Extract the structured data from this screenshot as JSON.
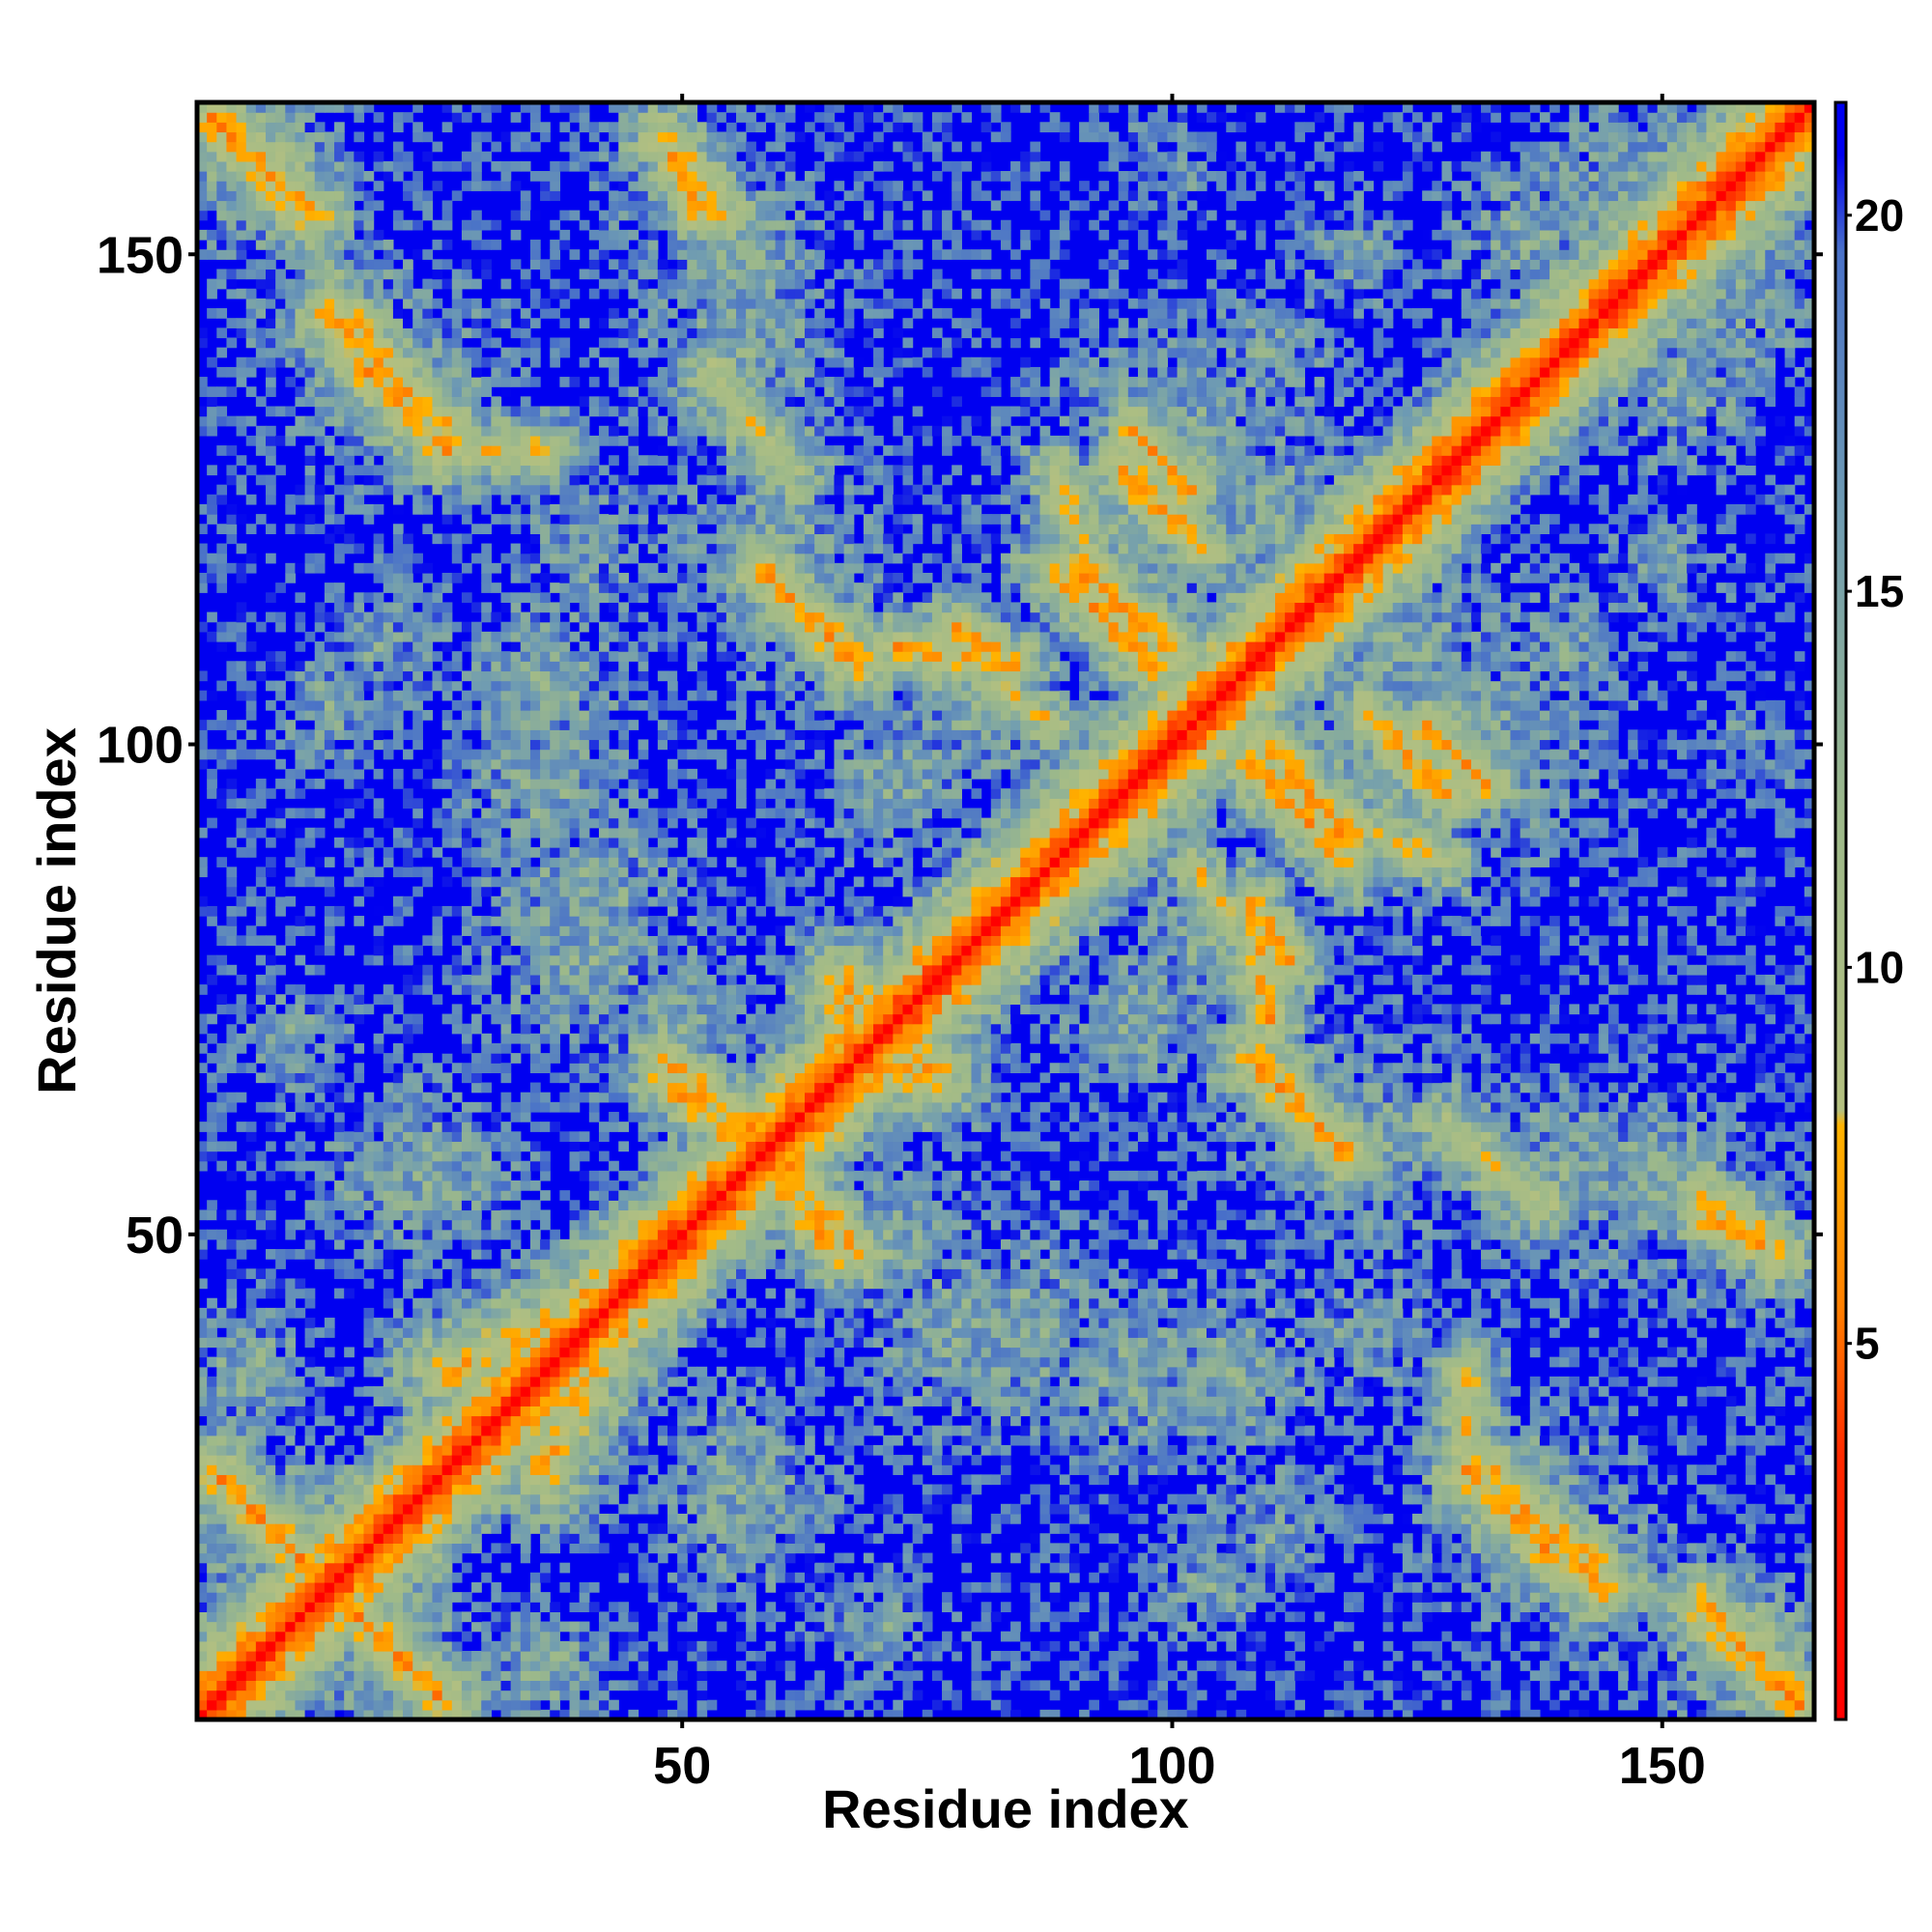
{
  "chart_data": {
    "type": "heatmap",
    "title": "",
    "xlabel": "Residue index",
    "ylabel": "Residue index",
    "n_residues": 165,
    "x_range": [
      0.5,
      165.5
    ],
    "y_range": [
      0.5,
      165.5
    ],
    "x_ticks": [
      50,
      100,
      150
    ],
    "y_ticks": [
      50,
      100,
      150
    ],
    "symmetric": true,
    "value_range": [
      0,
      21.5
    ],
    "colorbar": {
      "ticks": [
        5,
        10,
        15,
        20
      ],
      "stops": [
        {
          "value": 0,
          "color": "#ff0000"
        },
        {
          "value": 3.5,
          "color": "#ff2a00"
        },
        {
          "value": 5.5,
          "color": "#ff8000"
        },
        {
          "value": 7.9,
          "color": "#ffb300"
        },
        {
          "value": 8.1,
          "color": "#b4c080"
        },
        {
          "value": 12,
          "color": "#9db98a"
        },
        {
          "value": 16,
          "color": "#6f9cb2"
        },
        {
          "value": 19.5,
          "color": "#4a72c8"
        },
        {
          "value": 20.8,
          "color": "#0000f0"
        }
      ]
    },
    "cutoff": 20.8,
    "diagonal_band_width": 2.3,
    "noise": 0.25,
    "contact_segments": [
      {
        "from": [
          2,
          164
        ],
        "to": [
          12,
          154
        ],
        "d": 6.5,
        "w": 2.2
      },
      {
        "from": [
          14,
          144
        ],
        "to": [
          26,
          132
        ],
        "d": 6.5,
        "w": 2.0
      },
      {
        "from": [
          26,
          130
        ],
        "to": [
          36,
          130
        ],
        "d": 8,
        "w": 2.0
      },
      {
        "from": [
          48,
          162
        ],
        "to": [
          52,
          154
        ],
        "d": 7,
        "w": 1.8
      },
      {
        "from": [
          53,
          138
        ],
        "to": [
          61,
          128
        ],
        "d": 9,
        "w": 2.5
      },
      {
        "from": [
          58,
          118
        ],
        "to": [
          66,
          110
        ],
        "d": 6.5,
        "w": 1.8
      },
      {
        "from": [
          72,
          110
        ],
        "to": [
          84,
          108
        ],
        "d": 7,
        "w": 2.0
      },
      {
        "from": [
          95,
          128
        ],
        "to": [
          103,
          120
        ],
        "d": 6.5,
        "w": 1.8
      },
      {
        "from": [
          90,
          118
        ],
        "to": [
          100,
          110
        ],
        "d": 6.5,
        "w": 2.0
      },
      {
        "from": [
          108,
          98
        ],
        "to": [
          118,
          88
        ],
        "d": 6.5,
        "w": 2.0
      },
      {
        "from": [
          126,
          102
        ],
        "to": [
          132,
          96
        ],
        "d": 6.5,
        "w": 1.6
      },
      {
        "from": [
          118,
          92
        ],
        "to": [
          128,
          88
        ],
        "d": 8,
        "w": 1.8
      },
      {
        "from": [
          2,
          26
        ],
        "to": [
          14,
          14
        ],
        "d": 6.5,
        "w": 2.0
      },
      {
        "from": [
          14,
          14
        ],
        "to": [
          26,
          2
        ],
        "d": 6.5,
        "w": 2.0
      },
      {
        "from": [
          48,
          66
        ],
        "to": [
          58,
          58
        ],
        "d": 6.5,
        "w": 1.8
      },
      {
        "from": [
          60,
          58
        ],
        "to": [
          68,
          48
        ],
        "d": 6.5,
        "w": 1.8
      },
      {
        "from": [
          66,
          74
        ],
        "to": [
          76,
          66
        ],
        "d": 7,
        "w": 2.5
      },
      {
        "from": [
          108,
          68
        ],
        "to": [
          118,
          58
        ],
        "d": 6.5,
        "w": 2.0
      },
      {
        "from": [
          130,
          26
        ],
        "to": [
          140,
          16
        ],
        "d": 6.5,
        "w": 2.0
      },
      {
        "from": [
          140,
          20
        ],
        "to": [
          146,
          14
        ],
        "d": 8,
        "w": 1.8
      },
      {
        "from": [
          154,
          12
        ],
        "to": [
          164,
          2
        ],
        "d": 6.5,
        "w": 2.0
      },
      {
        "from": [
          154,
          54
        ],
        "to": [
          162,
          48
        ],
        "d": 7,
        "w": 2.0
      },
      {
        "from": [
          26,
          36
        ],
        "to": [
          44,
          44
        ],
        "d": 7.5,
        "w": 3.0
      },
      {
        "from": [
          108,
          84
        ],
        "to": [
          112,
          78
        ],
        "d": 7,
        "w": 1.8
      },
      {
        "from": [
          102,
          88
        ],
        "to": [
          106,
          82
        ],
        "d": 8,
        "w": 1.6
      }
    ],
    "contact_blobs": [
      {
        "center": [
          16,
          144
        ],
        "radius": 14,
        "d": 14
      },
      {
        "center": [
          8,
          158
        ],
        "radius": 10,
        "d": 12
      },
      {
        "center": [
          56,
          150
        ],
        "radius": 14,
        "d": 14
      },
      {
        "center": [
          60,
          120
        ],
        "radius": 16,
        "d": 14
      },
      {
        "center": [
          36,
          106
        ],
        "radius": 14,
        "d": 14
      },
      {
        "center": [
          20,
          110
        ],
        "radius": 12,
        "d": 15
      },
      {
        "center": [
          80,
          105
        ],
        "radius": 14,
        "d": 14
      },
      {
        "center": [
          100,
          128
        ],
        "radius": 18,
        "d": 13
      },
      {
        "center": [
          124,
          110
        ],
        "radius": 16,
        "d": 14
      },
      {
        "center": [
          148,
          154
        ],
        "radius": 16,
        "d": 13
      },
      {
        "center": [
          140,
          110
        ],
        "radius": 12,
        "d": 15
      },
      {
        "center": [
          104,
          80
        ],
        "radius": 14,
        "d": 14
      },
      {
        "center": [
          122,
          96
        ],
        "radius": 16,
        "d": 13
      },
      {
        "center": [
          50,
          70
        ],
        "radius": 14,
        "d": 14
      },
      {
        "center": [
          40,
          84
        ],
        "radius": 16,
        "d": 14
      },
      {
        "center": [
          10,
          70
        ],
        "radius": 10,
        "d": 15
      },
      {
        "center": [
          24,
          56
        ],
        "radius": 14,
        "d": 14
      },
      {
        "center": [
          78,
          40
        ],
        "radius": 16,
        "d": 14
      },
      {
        "center": [
          96,
          36
        ],
        "radius": 14,
        "d": 14
      },
      {
        "center": [
          120,
          40
        ],
        "radius": 12,
        "d": 15
      },
      {
        "center": [
          112,
          64
        ],
        "radius": 14,
        "d": 14
      },
      {
        "center": [
          140,
          56
        ],
        "radius": 16,
        "d": 14
      },
      {
        "center": [
          158,
          50
        ],
        "radius": 12,
        "d": 14
      },
      {
        "center": [
          136,
          22
        ],
        "radius": 14,
        "d": 13
      },
      {
        "center": [
          158,
          8
        ],
        "radius": 10,
        "d": 12
      },
      {
        "center": [
          18,
          10
        ],
        "radius": 12,
        "d": 12
      },
      {
        "center": [
          34,
          30
        ],
        "radius": 12,
        "d": 14
      },
      {
        "center": [
          56,
          18
        ],
        "radius": 10,
        "d": 15
      },
      {
        "center": [
          104,
          14
        ],
        "radius": 10,
        "d": 15
      },
      {
        "center": [
          6,
          36
        ],
        "radius": 10,
        "d": 14
      },
      {
        "center": [
          152,
          136
        ],
        "radius": 12,
        "d": 14
      },
      {
        "center": [
          118,
          150
        ],
        "radius": 10,
        "d": 15
      },
      {
        "center": [
          100,
          158
        ],
        "radius": 8,
        "d": 16
      },
      {
        "center": [
          160,
          98
        ],
        "radius": 8,
        "d": 16
      },
      {
        "center": [
          72,
          96
        ],
        "radius": 12,
        "d": 14
      },
      {
        "center": [
          90,
          120
        ],
        "radius": 12,
        "d": 14
      }
    ]
  }
}
